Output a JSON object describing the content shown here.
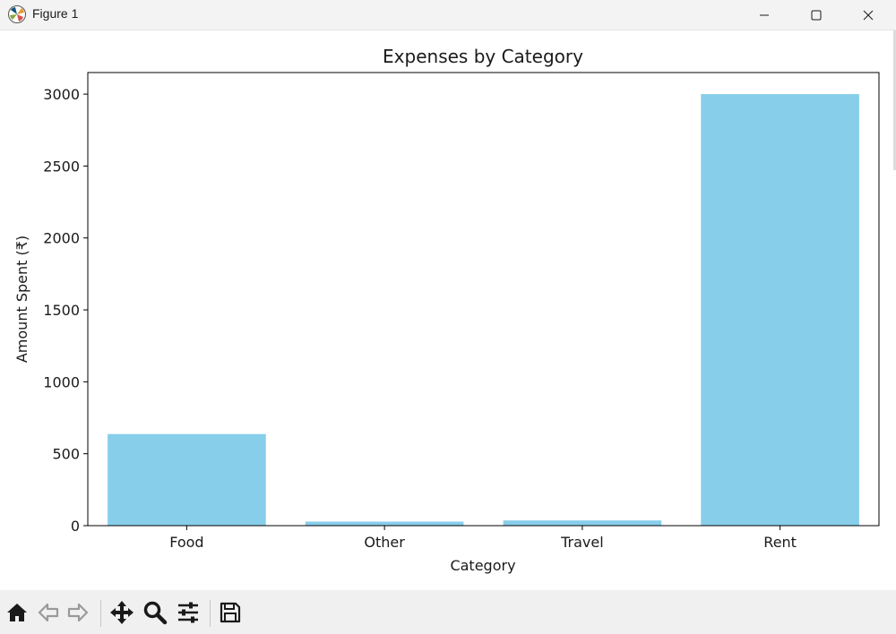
{
  "window": {
    "title": "Figure 1",
    "app_icon": "matplotlib-icon",
    "controls": [
      "minimize-icon",
      "maximize-icon",
      "close-icon"
    ]
  },
  "chart_data": {
    "type": "bar",
    "title": "Expenses by Category",
    "xlabel": "Category",
    "ylabel": "Amount Spent (₹)",
    "categories": [
      "Food",
      "Other",
      "Travel",
      "Rent"
    ],
    "values": [
      637,
      28,
      36,
      3000
    ],
    "ylim": [
      0,
      3150
    ],
    "yticks": [
      0,
      500,
      1000,
      1500,
      2000,
      2500,
      3000
    ],
    "bar_color": "#87ceeb",
    "grid": false,
    "legend": false
  },
  "toolbar": {
    "tools": [
      "home-icon",
      "back-icon",
      "forward-icon",
      "pan-icon",
      "zoom-icon",
      "configure-subplots-icon",
      "save-icon"
    ]
  }
}
